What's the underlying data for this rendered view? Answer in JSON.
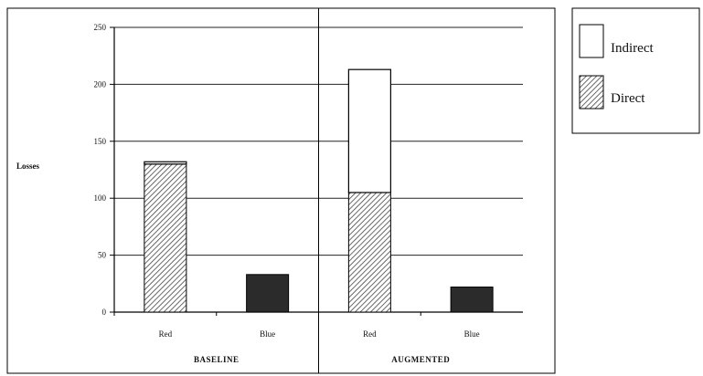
{
  "chart_data": {
    "type": "bar",
    "stacked": true,
    "ylabel": "Losses",
    "ylim": [
      0,
      250
    ],
    "yticks": [
      0,
      50,
      100,
      150,
      200,
      250
    ],
    "grid": true,
    "legend_position": "right",
    "groups": [
      {
        "label": "BASELINE",
        "categories": [
          "Red",
          "Blue"
        ]
      },
      {
        "label": "AUGMENTED",
        "categories": [
          "Red",
          "Blue"
        ]
      }
    ],
    "series": [
      {
        "name": "Direct",
        "style": "hatched",
        "values": [
          130,
          33,
          105,
          22
        ]
      },
      {
        "name": "Indirect",
        "style": "white",
        "values": [
          2,
          0,
          108,
          0
        ]
      }
    ],
    "solid_bar_indices": [
      1,
      3
    ],
    "colors": {
      "frame": "#000000",
      "grid": "#222222",
      "solid_bar": "#2b2b2b",
      "hatch": "#444444"
    }
  }
}
